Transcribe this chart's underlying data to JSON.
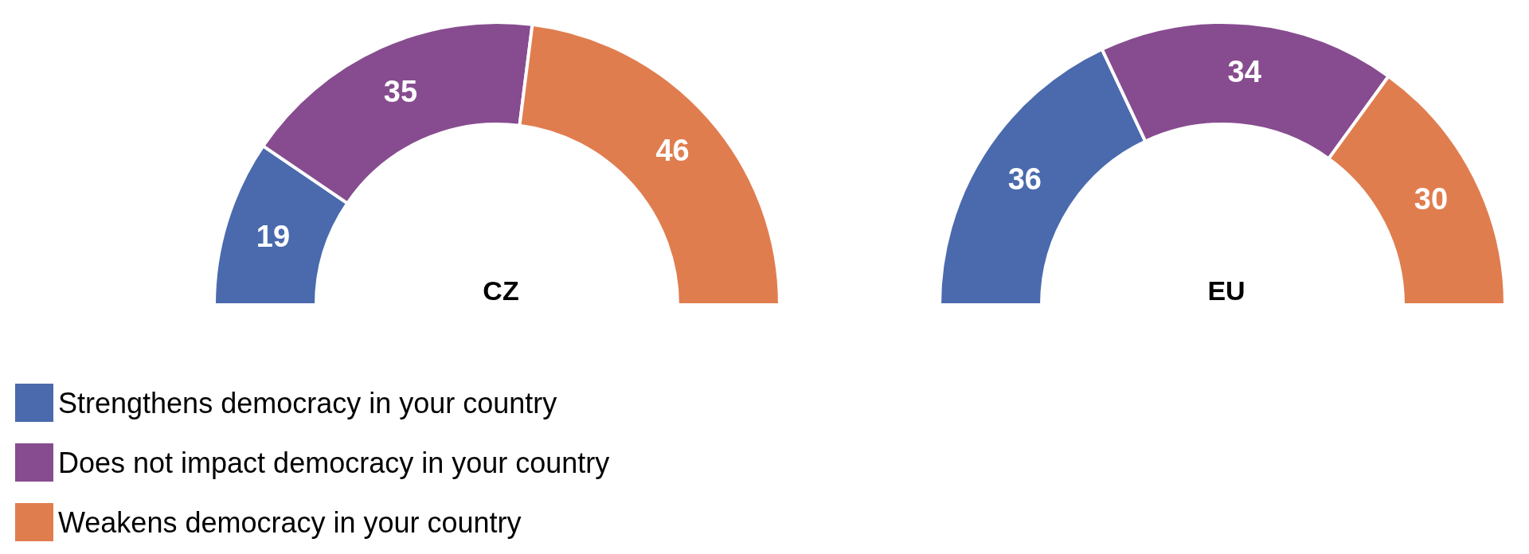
{
  "chart_data": {
    "type": "donut",
    "categories": [
      "Strengthens democracy in your country",
      "Does not impact democracy in your country",
      "Weakens democracy in your country"
    ],
    "colors": [
      "#4a6aad",
      "#874c8f",
      "#e07d4f"
    ],
    "series": [
      {
        "name": "CZ",
        "values": [
          19,
          35,
          46
        ]
      },
      {
        "name": "EU",
        "values": [
          36,
          34,
          30
        ]
      }
    ],
    "data_labels": true,
    "legend": "bottom left"
  }
}
